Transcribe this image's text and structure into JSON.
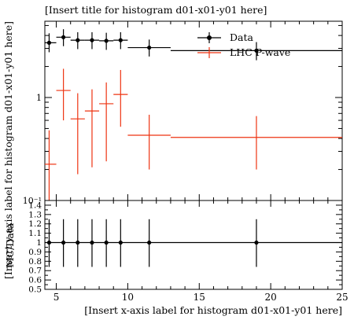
{
  "chart_data": {
    "type": "histogram",
    "title": "[Insert title for histogram d01-x01-y01 here]",
    "xlabel": "[Insert x-axis label for histogram d01-x01-y01 here]",
    "ylabel": "[Insert y-axis label for histogram d01-x01-y01 here]",
    "ratio_ylabel": "MC/Data",
    "xlim": [
      4.2,
      25
    ],
    "ylim": [
      0.1,
      5.5
    ],
    "yscale": "log",
    "ratio_ylim": [
      0.5,
      1.45
    ],
    "x_ticks": [
      5,
      10,
      15,
      20,
      25
    ],
    "x_tick_labels": [
      "5",
      "10",
      "15",
      "20",
      "25"
    ],
    "y_ticks": [
      0.1,
      1
    ],
    "y_tick_labels": [
      "10⁻¹",
      "1"
    ],
    "ratio_ticks": [
      0.5,
      0.6,
      0.7,
      0.8,
      0.9,
      1.0,
      1.1,
      1.2,
      1.3,
      1.4
    ],
    "ratio_tick_labels": [
      "0.5",
      "0.6",
      "0.7",
      "0.8",
      "0.9",
      "1",
      "1.1",
      "1.2",
      "1.3",
      "1.4"
    ],
    "legend_position": "top-right",
    "series": [
      {
        "name": "Data",
        "color": "#000000",
        "style": "points",
        "bins": [
          {
            "lo": 4,
            "hi": 5,
            "x": 4.5,
            "y": 3.4,
            "ylo": 2.75,
            "yhi": 4.2
          },
          {
            "lo": 5,
            "hi": 6,
            "x": 5.5,
            "y": 3.85,
            "ylo": 3.15,
            "yhi": 4.6
          },
          {
            "lo": 6,
            "hi": 7,
            "x": 6.5,
            "y": 3.6,
            "ylo": 2.95,
            "yhi": 4.3
          },
          {
            "lo": 7,
            "hi": 8,
            "x": 7.5,
            "y": 3.6,
            "ylo": 2.95,
            "yhi": 4.3
          },
          {
            "lo": 8,
            "hi": 9,
            "x": 8.5,
            "y": 3.55,
            "ylo": 2.9,
            "yhi": 4.25
          },
          {
            "lo": 9,
            "hi": 10,
            "x": 9.5,
            "y": 3.6,
            "ylo": 2.95,
            "yhi": 4.3
          },
          {
            "lo": 10,
            "hi": 13,
            "x": 11.5,
            "y": 3.05,
            "ylo": 2.5,
            "yhi": 3.65
          },
          {
            "lo": 13,
            "hi": 25,
            "x": 19,
            "y": 2.85,
            "ylo": 2.3,
            "yhi": 3.45
          }
        ]
      },
      {
        "name": "LHC P-wave",
        "color": "#ee3311",
        "style": "histogram",
        "bins": [
          {
            "lo": 4,
            "hi": 5,
            "x": 4.5,
            "y": 0.225,
            "ylo": 0.1,
            "yhi": 0.48
          },
          {
            "lo": 5,
            "hi": 6,
            "x": 5.5,
            "y": 1.17,
            "ylo": 0.6,
            "yhi": 1.9
          },
          {
            "lo": 6,
            "hi": 7,
            "x": 6.5,
            "y": 0.62,
            "ylo": 0.18,
            "yhi": 1.1
          },
          {
            "lo": 7,
            "hi": 8,
            "x": 7.5,
            "y": 0.74,
            "ylo": 0.21,
            "yhi": 1.2
          },
          {
            "lo": 8,
            "hi": 9,
            "x": 8.5,
            "y": 0.87,
            "ylo": 0.24,
            "yhi": 1.4
          },
          {
            "lo": 9,
            "hi": 10,
            "x": 9.5,
            "y": 1.07,
            "ylo": 0.52,
            "yhi": 1.85
          },
          {
            "lo": 10,
            "hi": 13,
            "x": 11.5,
            "y": 0.43,
            "ylo": 0.2,
            "yhi": 0.68
          },
          {
            "lo": 13,
            "hi": 25,
            "x": 19,
            "y": 0.41,
            "ylo": 0.2,
            "yhi": 0.66
          }
        ]
      }
    ],
    "ratio": {
      "reference_line": 1.0,
      "points": [
        {
          "x": 4.5,
          "y": 1.0,
          "ylo": 0.74,
          "yhi": 1.25
        },
        {
          "x": 5.5,
          "y": 1.0,
          "ylo": 0.74,
          "yhi": 1.25
        },
        {
          "x": 6.5,
          "y": 1.0,
          "ylo": 0.74,
          "yhi": 1.25
        },
        {
          "x": 7.5,
          "y": 1.0,
          "ylo": 0.74,
          "yhi": 1.25
        },
        {
          "x": 8.5,
          "y": 1.0,
          "ylo": 0.74,
          "yhi": 1.25
        },
        {
          "x": 9.5,
          "y": 1.0,
          "ylo": 0.74,
          "yhi": 1.25
        },
        {
          "x": 11.5,
          "y": 1.0,
          "ylo": 0.74,
          "yhi": 1.25
        },
        {
          "x": 19,
          "y": 1.0,
          "ylo": 0.74,
          "yhi": 1.25
        }
      ]
    }
  }
}
